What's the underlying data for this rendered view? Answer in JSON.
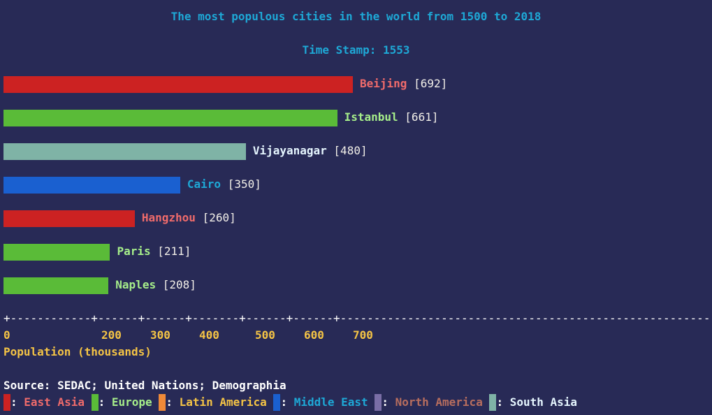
{
  "chart_data": {
    "type": "bar",
    "orientation": "horizontal",
    "title": "The most populous cities in the world from 1500 to 2018",
    "subtitle": "Time Stamp: 1553",
    "xlabel": "Population (thousands)",
    "source": "Source: SEDAC; United Nations; Demographia",
    "xticks": [
      0,
      200,
      300,
      400,
      500,
      600,
      700
    ],
    "axis_line": "+------------+------+------+-------+------+------+-------------------------------------------------------->",
    "bars": [
      {
        "city": "Beijing",
        "value": 692,
        "value_label": "[692]",
        "region": "East Asia"
      },
      {
        "city": "Istanbul",
        "value": 661,
        "value_label": "[661]",
        "region": "Europe"
      },
      {
        "city": "Vijayanagar",
        "value": 480,
        "value_label": "[480]",
        "region": "South Asia"
      },
      {
        "city": "Cairo",
        "value": 350,
        "value_label": "[350]",
        "region": "Middle East"
      },
      {
        "city": "Hangzhou",
        "value": 260,
        "value_label": "[260]",
        "region": "East Asia"
      },
      {
        "city": "Paris",
        "value": 211,
        "value_label": "[211]",
        "region": "Europe"
      },
      {
        "city": "Naples",
        "value": 208,
        "value_label": "[208]",
        "region": "Europe"
      }
    ],
    "legend": [
      {
        "name": "East Asia",
        "bar_color": "#cc2222",
        "text_color": "#f06b6b"
      },
      {
        "name": "Europe",
        "bar_color": "#5abb38",
        "text_color": "#a6ee8a"
      },
      {
        "name": "Latin America",
        "bar_color": "#f08a38",
        "text_color": "#f5c445"
      },
      {
        "name": "Middle East",
        "bar_color": "#1a60d0",
        "text_color": "#1ea8d6"
      },
      {
        "name": "North America",
        "bar_color": "#7a6ea6",
        "text_color": "#b86e5e"
      },
      {
        "name": "South Asia",
        "bar_color": "#7fb3a6",
        "text_color": "#e6f6ff"
      }
    ],
    "legend_placement": "bottom-left",
    "grid": false
  }
}
